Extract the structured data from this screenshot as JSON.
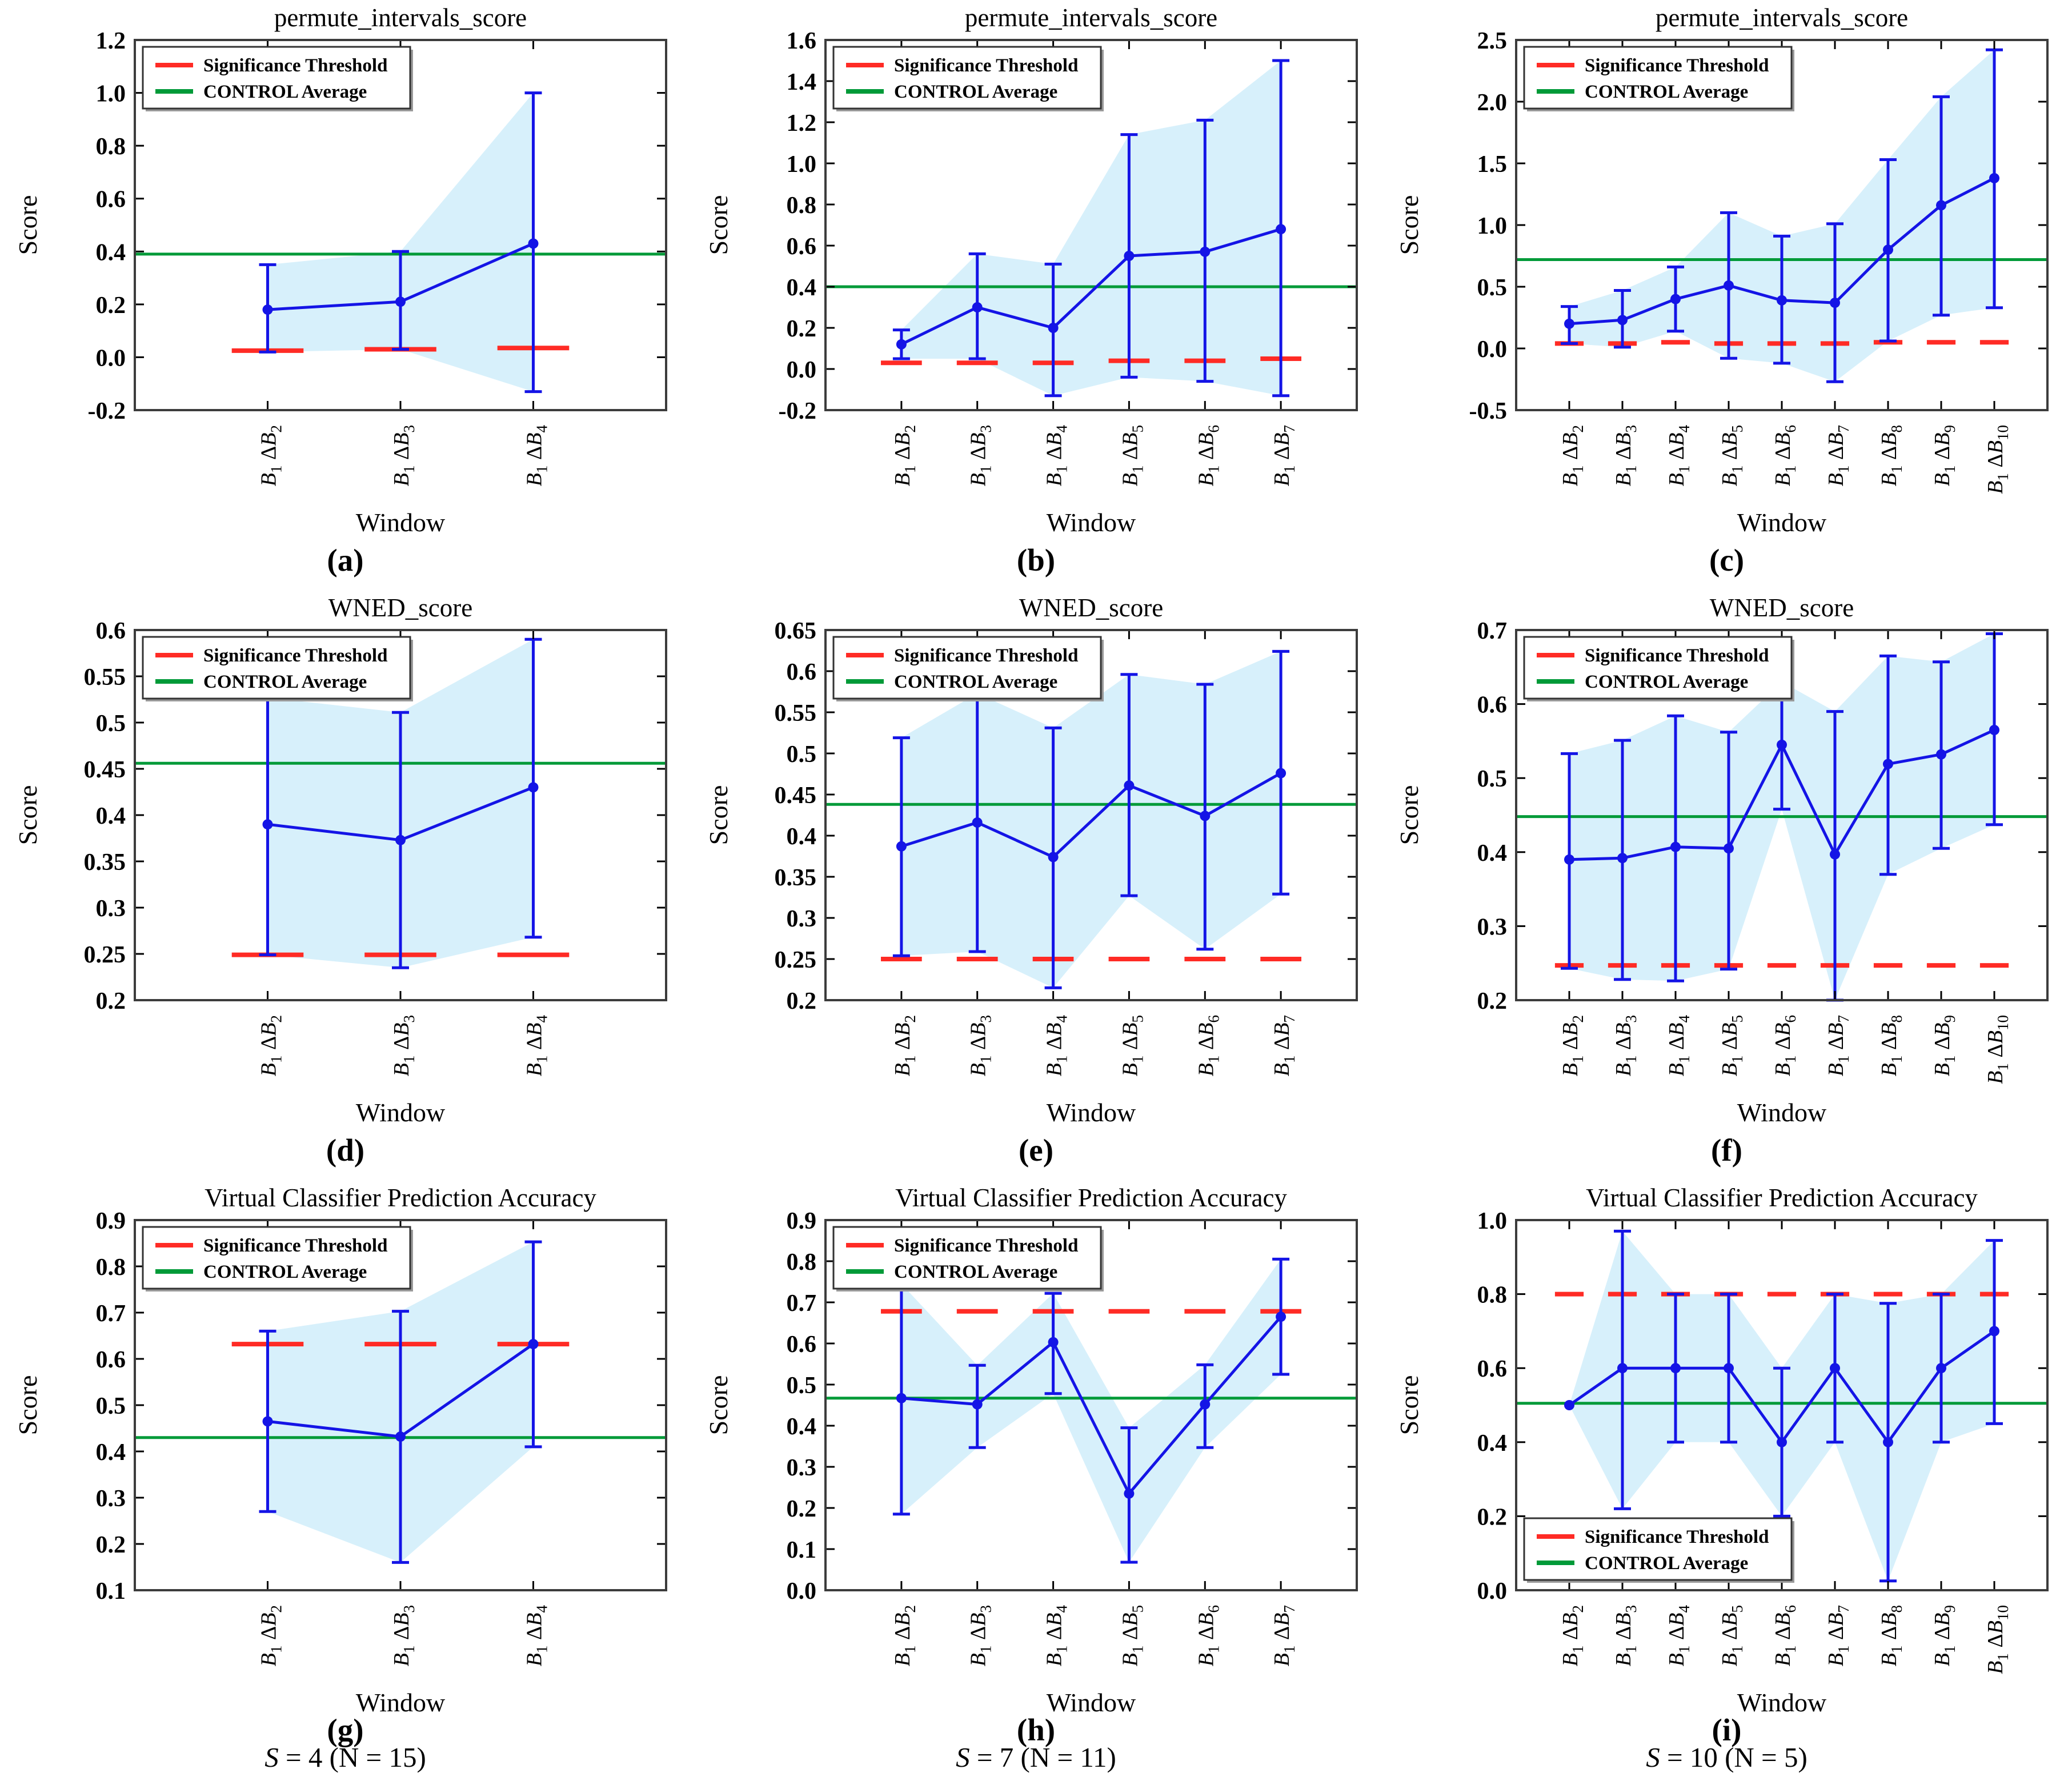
{
  "figure": {
    "legend": {
      "threshold_label": "Significance Threshold",
      "control_label": "CONTROL Average"
    },
    "colors": {
      "series": "#1414e6",
      "band": "#d7f0fb",
      "threshold": "#ff2b25",
      "control": "#009a38",
      "frame": "#3c3c3c",
      "tick": "#000000"
    }
  },
  "chart_data": [
    {
      "id": "a",
      "type": "line",
      "title": "permute_intervals_score",
      "xlabel": "Window",
      "ylabel": "Score",
      "categories": [
        "B1ΔB2",
        "B1ΔB3",
        "B1ΔB4"
      ],
      "values": [
        0.18,
        0.21,
        0.43
      ],
      "err_lo": [
        0.02,
        0.03,
        -0.13
      ],
      "err_hi": [
        0.35,
        0.4,
        1.0
      ],
      "control_average": 0.39,
      "significance_threshold": [
        0.025,
        0.03,
        0.035
      ],
      "ylim": [
        -0.2,
        1.2
      ],
      "yticks": [
        -0.2,
        0.0,
        0.2,
        0.4,
        0.6,
        0.8,
        1.0,
        1.2
      ],
      "ytick_labels": [
        "-0.2",
        "0.0",
        "0.2",
        "0.4",
        "0.6",
        "0.8",
        "1.0",
        "1.2"
      ],
      "legend_position": "top-left",
      "grid": false,
      "caption": "(a)"
    },
    {
      "id": "b",
      "type": "line",
      "title": "permute_intervals_score",
      "xlabel": "Window",
      "ylabel": "Score",
      "categories": [
        "B1ΔB2",
        "B1ΔB3",
        "B1ΔB4",
        "B1ΔB5",
        "B1ΔB6",
        "B1ΔB7"
      ],
      "values": [
        0.12,
        0.3,
        0.2,
        0.55,
        0.57,
        0.68
      ],
      "err_lo": [
        0.05,
        0.05,
        -0.13,
        -0.04,
        -0.06,
        -0.13
      ],
      "err_hi": [
        0.19,
        0.56,
        0.51,
        1.14,
        1.21,
        1.5
      ],
      "control_average": 0.4,
      "significance_threshold": [
        0.03,
        0.03,
        0.03,
        0.04,
        0.04,
        0.05
      ],
      "ylim": [
        -0.2,
        1.6
      ],
      "yticks": [
        -0.2,
        0.0,
        0.2,
        0.4,
        0.6,
        0.8,
        1.0,
        1.2,
        1.4,
        1.6
      ],
      "ytick_labels": [
        "-0.2",
        "0.0",
        "0.2",
        "0.4",
        "0.6",
        "0.8",
        "1.0",
        "1.2",
        "1.4",
        "1.6"
      ],
      "legend_position": "top-left",
      "grid": false,
      "caption": "(b)"
    },
    {
      "id": "c",
      "type": "line",
      "title": "permute_intervals_score",
      "xlabel": "Window",
      "ylabel": "Score",
      "categories": [
        "B1ΔB2",
        "B1ΔB3",
        "B1ΔB4",
        "B1ΔB5",
        "B1ΔB6",
        "B1ΔB7",
        "B1ΔB8",
        "B1ΔB9",
        "B1ΔB10"
      ],
      "values": [
        0.2,
        0.23,
        0.4,
        0.51,
        0.39,
        0.37,
        0.8,
        1.16,
        1.38
      ],
      "err_lo": [
        0.04,
        0.01,
        0.14,
        -0.08,
        -0.12,
        -0.27,
        0.06,
        0.27,
        0.33
      ],
      "err_hi": [
        0.34,
        0.47,
        0.66,
        1.1,
        0.91,
        1.01,
        1.53,
        2.04,
        2.42
      ],
      "control_average": 0.72,
      "significance_threshold": [
        0.04,
        0.04,
        0.05,
        0.04,
        0.04,
        0.04,
        0.05,
        0.05,
        0.05
      ],
      "ylim": [
        -0.5,
        2.5
      ],
      "yticks": [
        -0.5,
        0.0,
        0.5,
        1.0,
        1.5,
        2.0,
        2.5
      ],
      "ytick_labels": [
        "-0.5",
        "0.0",
        "0.5",
        "1.0",
        "1.5",
        "2.0",
        "2.5"
      ],
      "legend_position": "top-left",
      "grid": false,
      "caption": "(c)"
    },
    {
      "id": "d",
      "type": "line",
      "title": "WNED_score",
      "xlabel": "Window",
      "ylabel": "Score",
      "categories": [
        "B1ΔB2",
        "B1ΔB3",
        "B1ΔB4"
      ],
      "values": [
        0.39,
        0.373,
        0.43
      ],
      "err_lo": [
        0.249,
        0.235,
        0.268
      ],
      "err_hi": [
        0.527,
        0.511,
        0.59
      ],
      "control_average": 0.456,
      "significance_threshold": 0.249,
      "ylim": [
        0.2,
        0.6
      ],
      "yticks": [
        0.2,
        0.25,
        0.3,
        0.35,
        0.4,
        0.45,
        0.5,
        0.55,
        0.6
      ],
      "ytick_labels": [
        "0.2",
        "0.25",
        "0.3",
        "0.35",
        "0.4",
        "0.45",
        "0.5",
        "0.55",
        "0.6"
      ],
      "legend_position": "top-left",
      "grid": false,
      "caption": "(d)"
    },
    {
      "id": "e",
      "type": "line",
      "title": "WNED_score",
      "xlabel": "Window",
      "ylabel": "Score",
      "categories": [
        "B1ΔB2",
        "B1ΔB3",
        "B1ΔB4",
        "B1ΔB5",
        "B1ΔB6",
        "B1ΔB7"
      ],
      "values": [
        0.387,
        0.416,
        0.374,
        0.461,
        0.424,
        0.476
      ],
      "err_lo": [
        0.254,
        0.259,
        0.215,
        0.327,
        0.262,
        0.329
      ],
      "err_hi": [
        0.519,
        0.573,
        0.531,
        0.596,
        0.584,
        0.624
      ],
      "control_average": 0.438,
      "significance_threshold": 0.25,
      "ylim": [
        0.2,
        0.65
      ],
      "yticks": [
        0.2,
        0.25,
        0.3,
        0.35,
        0.4,
        0.45,
        0.5,
        0.55,
        0.6,
        0.65
      ],
      "ytick_labels": [
        "0.2",
        "0.25",
        "0.3",
        "0.35",
        "0.4",
        "0.45",
        "0.5",
        "0.55",
        "0.6",
        "0.65"
      ],
      "legend_position": "top-left",
      "grid": false,
      "caption": "(e)"
    },
    {
      "id": "f",
      "type": "line",
      "title": "WNED_score",
      "xlabel": "Window",
      "ylabel": "Score",
      "categories": [
        "B1ΔB2",
        "B1ΔB3",
        "B1ΔB4",
        "B1ΔB5",
        "B1ΔB6",
        "B1ΔB7",
        "B1ΔB8",
        "B1ΔB9",
        "B1ΔB10"
      ],
      "values": [
        0.39,
        0.392,
        0.407,
        0.405,
        0.545,
        0.397,
        0.519,
        0.532,
        0.565
      ],
      "err_lo": [
        0.243,
        0.228,
        0.226,
        0.242,
        0.458,
        0.2,
        0.37,
        0.405,
        0.437
      ],
      "err_hi": [
        0.533,
        0.551,
        0.584,
        0.562,
        0.63,
        0.59,
        0.665,
        0.657,
        0.695
      ],
      "control_average": 0.448,
      "significance_threshold": 0.247,
      "ylim": [
        0.2,
        0.7
      ],
      "yticks": [
        0.2,
        0.3,
        0.4,
        0.5,
        0.6,
        0.7
      ],
      "ytick_labels": [
        "0.2",
        "0.3",
        "0.4",
        "0.5",
        "0.6",
        "0.7"
      ],
      "legend_position": "top-left",
      "grid": false,
      "caption": "(f)"
    },
    {
      "id": "g",
      "type": "line",
      "title": "Virtual Classifier Prediction Accuracy",
      "xlabel": "Window",
      "ylabel": "Score",
      "categories": [
        "B1ΔB2",
        "B1ΔB3",
        "B1ΔB4"
      ],
      "values": [
        0.465,
        0.432,
        0.632
      ],
      "err_lo": [
        0.27,
        0.16,
        0.41
      ],
      "err_hi": [
        0.66,
        0.703,
        0.853
      ],
      "control_average": 0.43,
      "significance_threshold": 0.632,
      "ylim": [
        0.1,
        0.9
      ],
      "yticks": [
        0.1,
        0.2,
        0.3,
        0.4,
        0.5,
        0.6,
        0.7,
        0.8,
        0.9
      ],
      "ytick_labels": [
        "0.1",
        "0.2",
        "0.3",
        "0.4",
        "0.5",
        "0.6",
        "0.7",
        "0.8",
        "0.9"
      ],
      "legend_position": "top-left",
      "grid": false,
      "caption": "(g)",
      "subcaption": "S = 4 (N = 15)"
    },
    {
      "id": "h",
      "type": "line",
      "title": "Virtual Classifier Prediction Accuracy",
      "xlabel": "Window",
      "ylabel": "Score",
      "categories": [
        "B1ΔB2",
        "B1ΔB3",
        "B1ΔB4",
        "B1ΔB5",
        "B1ΔB6",
        "B1ΔB7"
      ],
      "values": [
        0.467,
        0.452,
        0.603,
        0.235,
        0.452,
        0.665
      ],
      "err_lo": [
        0.185,
        0.347,
        0.478,
        0.068,
        0.347,
        0.525
      ],
      "err_hi": [
        0.745,
        0.547,
        0.722,
        0.395,
        0.548,
        0.805
      ],
      "control_average": 0.467,
      "significance_threshold": 0.678,
      "ylim": [
        0.0,
        0.9
      ],
      "yticks": [
        0.0,
        0.1,
        0.2,
        0.3,
        0.4,
        0.5,
        0.6,
        0.7,
        0.8,
        0.9
      ],
      "ytick_labels": [
        "0.0",
        "0.1",
        "0.2",
        "0.3",
        "0.4",
        "0.5",
        "0.6",
        "0.7",
        "0.8",
        "0.9"
      ],
      "legend_position": "top-left",
      "grid": false,
      "caption": "(h)",
      "subcaption": "S = 7 (N = 11)"
    },
    {
      "id": "i",
      "type": "line",
      "title": "Virtual Classifier Prediction Accuracy",
      "xlabel": "Window",
      "ylabel": "Score",
      "categories": [
        "B1ΔB2",
        "B1ΔB3",
        "B1ΔB4",
        "B1ΔB5",
        "B1ΔB6",
        "B1ΔB7",
        "B1ΔB8",
        "B1ΔB9",
        "B1ΔB10"
      ],
      "values": [
        0.5,
        0.6,
        0.6,
        0.6,
        0.4,
        0.6,
        0.4,
        0.6,
        0.7
      ],
      "err_lo": [
        0.5,
        0.22,
        0.4,
        0.4,
        0.2,
        0.4,
        0.025,
        0.4,
        0.45
      ],
      "err_hi": [
        0.5,
        0.97,
        0.8,
        0.8,
        0.6,
        0.8,
        0.775,
        0.8,
        0.945
      ],
      "control_average": 0.505,
      "significance_threshold": 0.8,
      "ylim": [
        0.0,
        1.0
      ],
      "yticks": [
        0.0,
        0.2,
        0.4,
        0.6,
        0.8,
        1.0
      ],
      "ytick_labels": [
        "0.0",
        "0.2",
        "0.4",
        "0.6",
        "0.8",
        "1.0"
      ],
      "legend_position": "bottom-left",
      "grid": false,
      "caption": "(i)",
      "subcaption": "S = 10 (N = 5)"
    }
  ]
}
